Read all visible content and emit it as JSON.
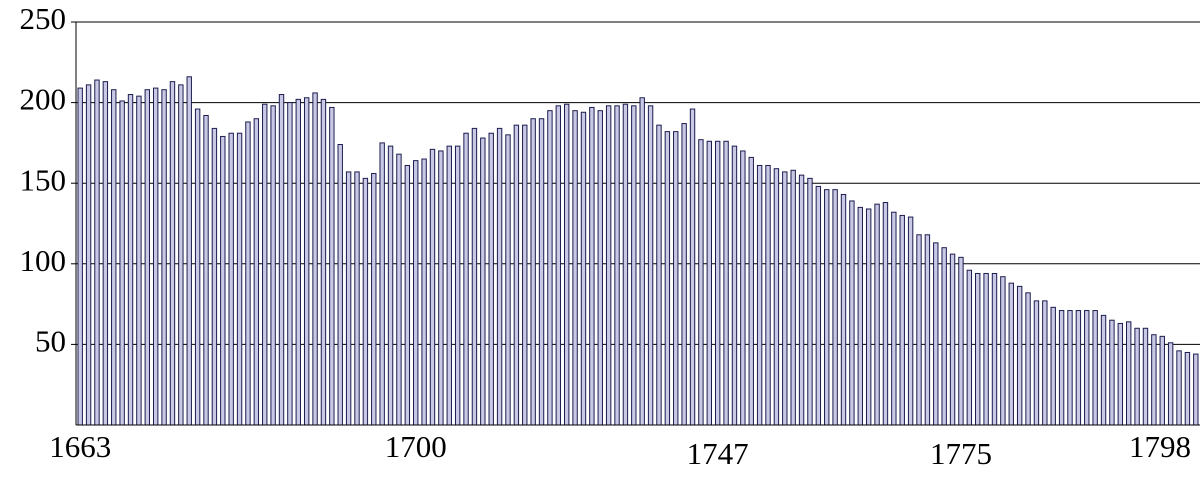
{
  "chart_data": {
    "type": "bar",
    "categories": [
      "1663",
      null,
      null,
      null,
      null,
      null,
      null,
      null,
      null,
      null,
      null,
      null,
      null,
      null,
      null,
      null,
      null,
      null,
      null,
      null,
      null,
      null,
      null,
      null,
      null,
      null,
      null,
      null,
      null,
      null,
      null,
      null,
      null,
      null,
      null,
      null,
      null,
      null,
      null,
      null,
      "1700",
      null,
      null,
      null,
      null,
      null,
      null,
      null,
      null,
      null,
      null,
      null,
      null,
      null,
      null,
      null,
      null,
      null,
      null,
      null,
      null,
      null,
      null,
      null,
      null,
      null,
      null,
      null,
      null,
      null,
      null,
      null,
      null,
      null,
      null,
      null,
      "1747",
      null,
      null,
      null,
      null,
      null,
      null,
      null,
      null,
      null,
      null,
      null,
      null,
      null,
      null,
      null,
      null,
      null,
      null,
      null,
      null,
      null,
      null,
      null,
      null,
      null,
      null,
      null,
      null,
      "1775",
      null,
      null,
      null,
      null,
      null,
      null,
      null,
      null,
      null,
      null,
      null,
      null,
      null,
      null,
      null,
      null,
      null,
      null,
      null,
      null,
      null,
      null,
      null,
      "1798",
      null,
      null,
      null,
      null
    ],
    "values": [
      209,
      211,
      214,
      213,
      208,
      201,
      205,
      204,
      208,
      209,
      208,
      213,
      211,
      216,
      196,
      192,
      184,
      179,
      181,
      181,
      188,
      190,
      199,
      198,
      205,
      200,
      202,
      203,
      206,
      202,
      197,
      174,
      157,
      157,
      153,
      156,
      175,
      173,
      168,
      161,
      164,
      165,
      171,
      170,
      173,
      173,
      181,
      184,
      178,
      181,
      184,
      180,
      186,
      186,
      190,
      190,
      195,
      198,
      199,
      195,
      194,
      197,
      195,
      198,
      198,
      199,
      198,
      203,
      198,
      186,
      182,
      182,
      187,
      196,
      177,
      176,
      176,
      176,
      173,
      170,
      166,
      161,
      161,
      159,
      157,
      158,
      155,
      153,
      148,
      146,
      146,
      143,
      139,
      135,
      134,
      137,
      138,
      132,
      130,
      129,
      118,
      118,
      113,
      110,
      106,
      104,
      96,
      94,
      94,
      94,
      92,
      88,
      86,
      82,
      77,
      77,
      73,
      71,
      71,
      71,
      71,
      71,
      68,
      65,
      63,
      64,
      60,
      60,
      56,
      55,
      51,
      46,
      45,
      44
    ],
    "color": "#c9c9e6",
    "ylim": [
      0,
      250
    ],
    "yticks": [
      50,
      100,
      150,
      200,
      250
    ],
    "grid": true
  }
}
